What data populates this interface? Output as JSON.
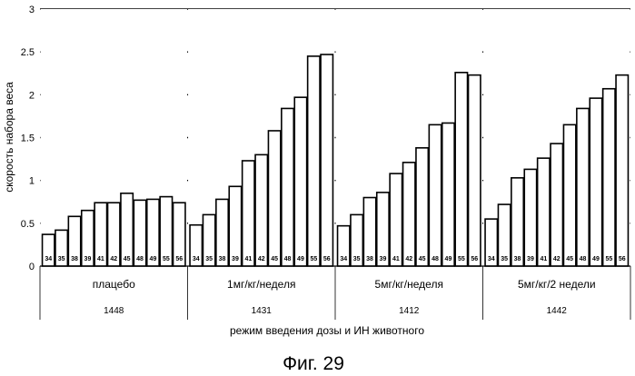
{
  "chart_data": {
    "type": "bar",
    "title": "",
    "ylabel": "скорость набора веса",
    "xlabel": "режим введения дозы и ИН животного",
    "ylim": [
      0,
      3
    ],
    "yticks": [
      "0",
      "0.5",
      "1",
      "1.5",
      "2",
      "2.5",
      "3"
    ],
    "grid": true,
    "caption": "Фиг. 29",
    "groups": [
      {
        "name": "плацебо",
        "id": "1448",
        "bar_labels": [
          "34",
          "35",
          "38",
          "39",
          "41",
          "42",
          "45",
          "48",
          "49",
          "55",
          "56"
        ],
        "values": [
          0.37,
          0.42,
          0.58,
          0.65,
          0.74,
          0.74,
          0.85,
          0.77,
          0.78,
          0.81,
          0.74
        ]
      },
      {
        "name": "1мг/кг/неделя",
        "id": "1431",
        "bar_labels": [
          "34",
          "35",
          "38",
          "39",
          "41",
          "42",
          "45",
          "48",
          "49",
          "55",
          "56"
        ],
        "values": [
          0.48,
          0.6,
          0.78,
          0.93,
          1.23,
          1.3,
          1.58,
          1.84,
          1.97,
          2.45,
          2.47
        ]
      },
      {
        "name": "5мг/кг/неделя",
        "id": "1412",
        "bar_labels": [
          "34",
          "35",
          "38",
          "39",
          "41",
          "42",
          "45",
          "48",
          "49",
          "55",
          "56"
        ],
        "values": [
          0.47,
          0.6,
          0.8,
          0.86,
          1.08,
          1.21,
          1.38,
          1.65,
          1.67,
          2.26,
          2.23
        ]
      },
      {
        "name": "5мг/кг/2 недели",
        "id": "1442",
        "bar_labels": [
          "34",
          "35",
          "38",
          "39",
          "41",
          "42",
          "45",
          "48",
          "49",
          "55",
          "56"
        ],
        "values": [
          0.55,
          0.72,
          1.03,
          1.13,
          1.26,
          1.43,
          1.65,
          1.84,
          1.96,
          2.07,
          2.23
        ]
      }
    ]
  }
}
